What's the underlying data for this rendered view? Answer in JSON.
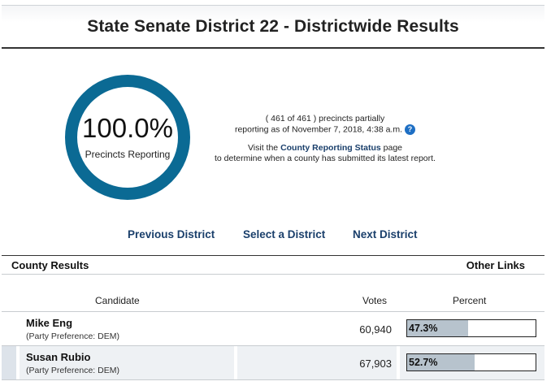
{
  "page": {
    "title": "State Senate District 22 - Districtwide Results"
  },
  "reporting": {
    "percent": "100.0%",
    "percent_label": "Precincts Reporting",
    "status_line1": "( 461 of 461 ) precincts partially",
    "status_line2": "reporting as of November 7, 2018, 4:38 a.m.",
    "help_icon": "?",
    "visit_prefix": "Visit the ",
    "visit_link": "County Reporting Status",
    "visit_suffix": " page",
    "visit_line2": "to determine when a county has submitted its latest report.",
    "ring_color": "#0b6a94"
  },
  "nav": {
    "previous": "Previous District",
    "select": "Select a District",
    "next": "Next District"
  },
  "section": {
    "left": "County Results",
    "right": "Other Links"
  },
  "table": {
    "headers": {
      "candidate": "Candidate",
      "votes": "Votes",
      "percent": "Percent"
    },
    "rows": [
      {
        "name": "Mike Eng",
        "party": "(Party Preference: DEM)",
        "votes": "60,940",
        "percent_text": "47.3%",
        "percent_value": 47.3
      },
      {
        "name": "Susan Rubio",
        "party": "(Party Preference: DEM)",
        "votes": "67,903",
        "percent_text": "52.7%",
        "percent_value": 52.7
      }
    ],
    "bar_color": "#b7c3cd"
  }
}
